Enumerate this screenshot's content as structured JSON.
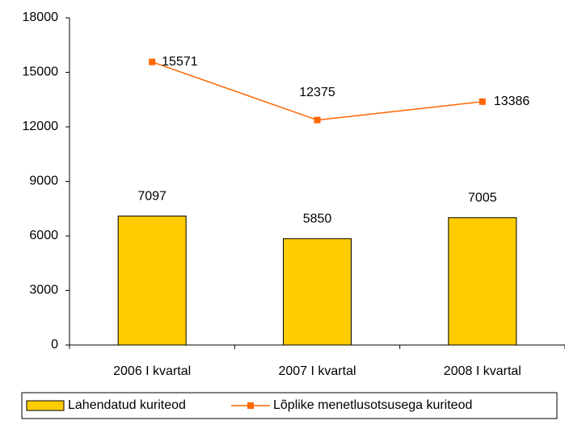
{
  "chart_data": {
    "type": "bar",
    "categories": [
      "2006 I kvartal",
      "2007 I kvartal",
      "2008 I kvartal"
    ],
    "series": [
      {
        "name": "Lahendatud kuriteod",
        "type": "bar",
        "color": "#ffcc00",
        "values": [
          7097,
          5850,
          7005
        ]
      },
      {
        "name": "Lõplike menetlusotsusega kuriteod",
        "type": "line",
        "color": "#ff6600",
        "values": [
          15571,
          12375,
          13386
        ]
      }
    ],
    "ylim": [
      0,
      18000
    ],
    "yticks": [
      0,
      3000,
      6000,
      9000,
      12000,
      15000,
      18000
    ],
    "grid": false,
    "legend": "bottom"
  }
}
